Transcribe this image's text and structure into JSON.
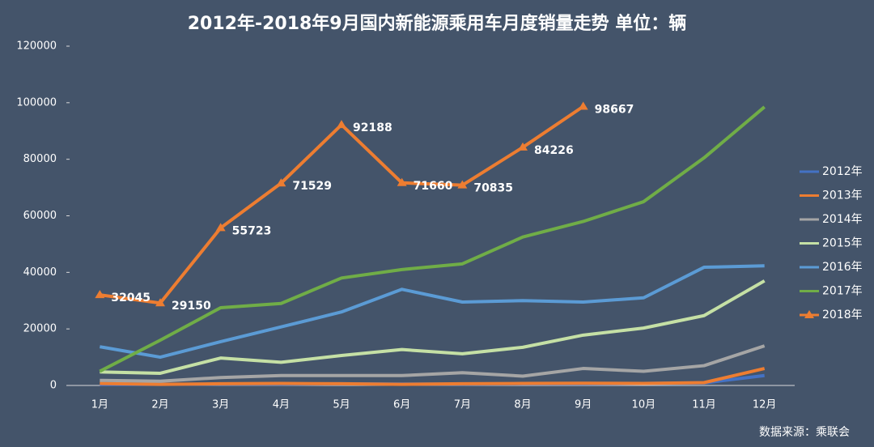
{
  "chart_data": {
    "type": "line",
    "title": "2012年-2018年9月国内新能源乘用车月度销量走势  单位：辆",
    "source": "数据来源：乘联会",
    "categories": [
      "1月",
      "2月",
      "3月",
      "4月",
      "5月",
      "6月",
      "7月",
      "8月",
      "9月",
      "10月",
      "11月",
      "12月"
    ],
    "ylim": [
      0,
      120000
    ],
    "yticks": [
      0,
      20000,
      40000,
      60000,
      80000,
      100000,
      120000
    ],
    "legend": "right",
    "series": [
      {
        "name": "2012年",
        "color": "#4472c4",
        "values": [
          300,
          400,
          500,
          500,
          600,
          500,
          500,
          600,
          600,
          700,
          900,
          3500
        ]
      },
      {
        "name": "2013年",
        "color": "#ed7d31",
        "values": [
          700,
          400,
          600,
          700,
          600,
          400,
          600,
          700,
          800,
          700,
          1000,
          6000
        ]
      },
      {
        "name": "2014年",
        "color": "#a5a5a5",
        "values": [
          1800,
          1500,
          2800,
          3500,
          3500,
          3500,
          4500,
          3300,
          6000,
          5000,
          7000,
          14000
        ]
      },
      {
        "name": "2015年",
        "color": "#c5e0a5",
        "values": [
          4800,
          4300,
          9700,
          8200,
          10600,
          12700,
          11200,
          13500,
          17800,
          20300,
          24700,
          37000
        ]
      },
      {
        "name": "2016年",
        "color": "#5b9bd5",
        "values": [
          13700,
          10000,
          15500,
          20700,
          26000,
          34000,
          29500,
          30000,
          29500,
          31000,
          41800,
          42300
        ]
      },
      {
        "name": "2017年",
        "color": "#70ad47",
        "values": [
          5000,
          16000,
          27500,
          29000,
          38000,
          41000,
          43000,
          52500,
          58000,
          65000,
          80500,
          98500
        ]
      },
      {
        "name": "2018年",
        "color": "#ed7d31",
        "marker": "triangle",
        "data_labels": true,
        "values": [
          32045,
          29150,
          55723,
          71529,
          92188,
          71660,
          70835,
          84226,
          98667,
          null,
          null,
          null
        ]
      }
    ]
  }
}
